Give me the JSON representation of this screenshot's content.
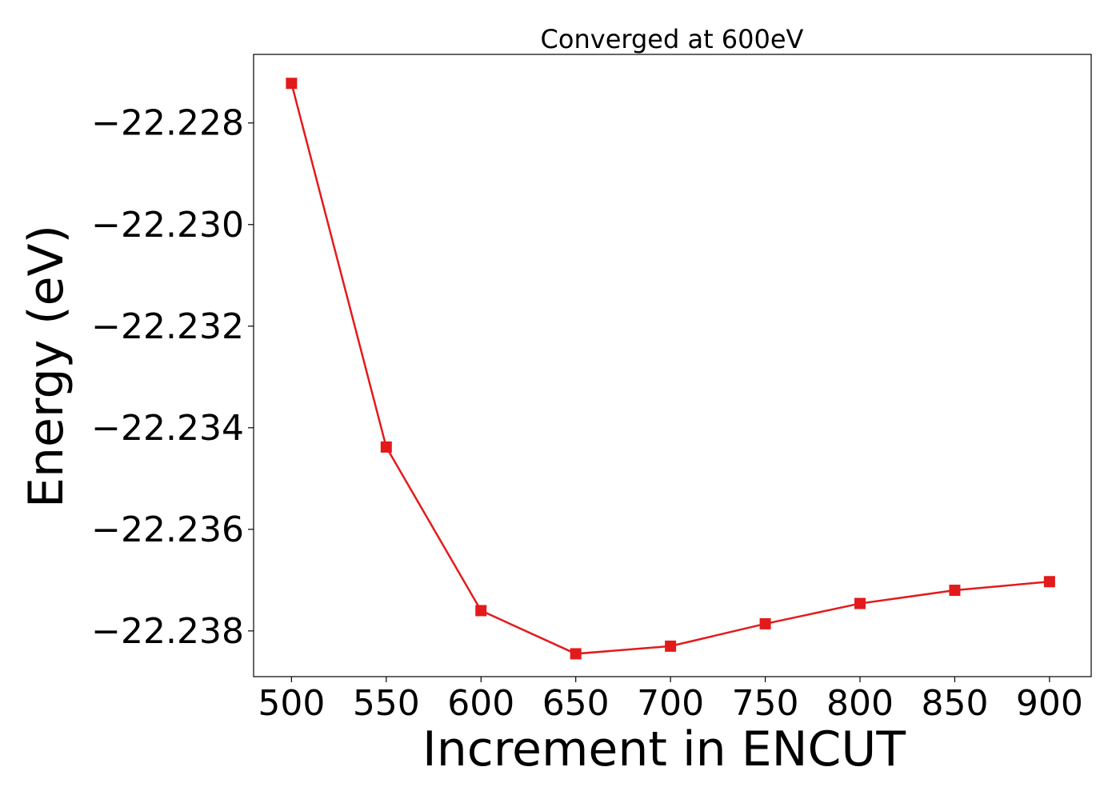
{
  "chart_data": {
    "type": "line",
    "title": "Converged at 600eV",
    "xlabel": "Increment in ENCUT",
    "ylabel": "Energy (eV)",
    "x": [
      500,
      550,
      600,
      650,
      700,
      750,
      800,
      850,
      900
    ],
    "series": [
      {
        "values": [
          -22.22722,
          -22.23438,
          -22.2376,
          -22.23845,
          -22.2383,
          -22.23786,
          -22.23746,
          -22.2372,
          -22.23703
        ],
        "color": "#e31a1c",
        "marker": "square"
      }
    ],
    "xlim": [
      480,
      922
    ],
    "ylim": [
      -22.2389,
      -22.22665
    ],
    "xticks": [
      500,
      550,
      600,
      650,
      700,
      750,
      800,
      850,
      900
    ],
    "yticks": [
      -22.228,
      -22.23,
      -22.232,
      -22.234,
      -22.236,
      -22.238
    ],
    "ytick_labels": [
      "−22.228",
      "−22.230",
      "−22.232",
      "−22.234",
      "−22.236",
      "−22.238"
    ],
    "grid": false,
    "legend": "none"
  }
}
